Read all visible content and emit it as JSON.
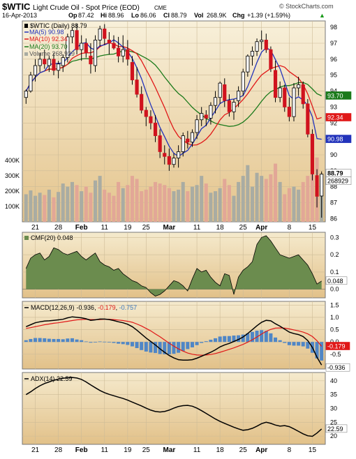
{
  "header": {
    "symbol": "$WTIC",
    "name": "Light Crude Oil - Spot Price (EOD)",
    "exchange": "CME",
    "credit": "© StockCharts.com",
    "date": "16-Apr-2013",
    "op_label": "Op",
    "op": "87.42",
    "hi_label": "Hi",
    "hi": "88.96",
    "lo_label": "Lo",
    "lo": "86.06",
    "cl_label": "Cl",
    "cl": "88.79",
    "vol_label": "Vol",
    "vol": "268.9K",
    "chg_label": "Chg",
    "chg": "+1.39 (+1.59%)",
    "chg_arrow": "▲"
  },
  "legend": {
    "main": "$WTIC (Daily) 88.79",
    "ma5": "MA(5) 90.98",
    "ma10": "MA(10) 92.34",
    "ma20": "MA(20) 93.70",
    "volume": "Volume 268,929"
  },
  "last_value_tags": {
    "ma20": "93.70",
    "ma10": "92.34",
    "ma5": "90.98",
    "price": "88.79",
    "volume": "268929"
  },
  "colors": {
    "panel_bg_top": "#f7eed6",
    "panel_bg_bottom": "#e6c78f",
    "up": "#f4f4f4",
    "down": "#d0121e",
    "ma5": "#2233bb",
    "ma10": "#e01818",
    "ma20": "#1b7a1b",
    "vol_up": "#a9aca3",
    "vol_down": "#e2a797",
    "cmf": "#6b8c4e",
    "macd_hist": "#4f86c6"
  },
  "chart_data": [
    {
      "type": "candlestick",
      "title": "$WTIC (Daily) 88.79",
      "ylim": [
        85.8,
        98.4
      ],
      "y_ticks": [
        86,
        87,
        88,
        89,
        90,
        91,
        92,
        93,
        94,
        95,
        96,
        97,
        98
      ],
      "x_ticks": [
        "21",
        "28",
        "Feb",
        "11",
        "19",
        "25",
        "Mar",
        "11",
        "18",
        "25",
        "Apr",
        "8",
        "15"
      ],
      "x_tick_bars": [
        2,
        7,
        12,
        17,
        22,
        26,
        31,
        37,
        42,
        47,
        51,
        57,
        62
      ],
      "volume_ticks": [
        "100K",
        "200K",
        "300K",
        "400K"
      ],
      "volume_tick_values": [
        100000,
        200000,
        300000,
        400000
      ],
      "volume_max": 560000,
      "ohlc": [
        [
          93.6,
          94.1,
          93.2,
          94.0
        ],
        [
          94.0,
          95.2,
          93.9,
          95.0
        ],
        [
          95.0,
          96.0,
          94.6,
          95.6
        ],
        [
          95.6,
          96.4,
          95.2,
          96.0
        ],
        [
          96.0,
          96.6,
          95.4,
          95.7
        ],
        [
          95.6,
          96.2,
          95.2,
          96.0
        ],
        [
          96.0,
          96.4,
          95.0,
          95.3
        ],
        [
          95.3,
          95.9,
          94.8,
          95.7
        ],
        [
          95.6,
          96.3,
          95.2,
          96.1
        ],
        [
          96.1,
          97.6,
          95.8,
          97.4
        ],
        [
          97.4,
          98.0,
          97.0,
          97.8
        ],
        [
          97.8,
          98.2,
          96.3,
          96.6
        ],
        [
          96.6,
          97.5,
          95.9,
          97.0
        ],
        [
          97.0,
          97.3,
          96.1,
          96.4
        ],
        [
          96.2,
          97.0,
          95.1,
          95.7
        ],
        [
          95.6,
          97.5,
          95.2,
          97.2
        ],
        [
          97.2,
          98.1,
          96.8,
          97.9
        ],
        [
          97.9,
          98.2,
          96.9,
          97.3
        ],
        [
          97.2,
          97.7,
          96.3,
          97.0
        ],
        [
          97.0,
          97.5,
          96.6,
          96.7
        ],
        [
          96.7,
          97.4,
          95.8,
          96.2
        ],
        [
          96.2,
          97.5,
          95.8,
          96.6
        ],
        [
          96.6,
          97.2,
          95.6,
          96.0
        ],
        [
          95.8,
          96.2,
          94.4,
          94.7
        ],
        [
          94.7,
          95.5,
          93.6,
          93.8
        ],
        [
          93.8,
          94.3,
          92.6,
          92.8
        ],
        [
          92.8,
          93.0,
          91.8,
          92.4
        ],
        [
          92.4,
          92.8,
          91.6,
          92.0
        ],
        [
          92.0,
          92.5,
          90.8,
          91.2
        ],
        [
          91.2,
          91.6,
          89.8,
          90.2
        ],
        [
          90.1,
          90.6,
          89.4,
          89.9
        ],
        [
          89.9,
          90.4,
          89.0,
          89.4
        ],
        [
          89.4,
          90.1,
          89.2,
          89.8
        ],
        [
          89.8,
          90.6,
          89.2,
          90.2
        ],
        [
          90.2,
          91.4,
          89.9,
          91.2
        ],
        [
          91.0,
          91.5,
          90.4,
          90.8
        ],
        [
          90.8,
          91.6,
          90.5,
          91.4
        ],
        [
          91.4,
          92.5,
          91.0,
          92.2
        ],
        [
          92.2,
          93.0,
          91.8,
          92.6
        ],
        [
          92.5,
          92.8,
          91.8,
          92.3
        ],
        [
          92.3,
          93.3,
          91.9,
          93.1
        ],
        [
          93.1,
          94.0,
          92.6,
          93.6
        ],
        [
          93.6,
          94.6,
          93.2,
          94.5
        ],
        [
          94.4,
          94.8,
          93.0,
          93.4
        ],
        [
          93.4,
          93.8,
          92.4,
          92.7
        ],
        [
          92.7,
          93.5,
          92.2,
          93.3
        ],
        [
          93.4,
          94.3,
          93.0,
          94.0
        ],
        [
          94.0,
          95.4,
          93.7,
          95.2
        ],
        [
          95.2,
          96.3,
          94.9,
          96.2
        ],
        [
          96.2,
          96.8,
          95.6,
          96.5
        ],
        [
          96.5,
          97.3,
          96.2,
          97.1
        ],
        [
          97.1,
          97.8,
          96.6,
          97.2
        ],
        [
          97.2,
          97.6,
          96.4,
          96.6
        ],
        [
          96.6,
          96.8,
          95.2,
          95.4
        ],
        [
          95.3,
          95.9,
          93.3,
          93.6
        ],
        [
          93.6,
          94.6,
          93.3,
          94.2
        ],
        [
          94.2,
          94.4,
          92.7,
          93.0
        ],
        [
          93.0,
          93.6,
          92.1,
          92.4
        ],
        [
          92.4,
          94.5,
          92.1,
          94.2
        ],
        [
          94.2,
          94.9,
          93.7,
          94.4
        ],
        [
          94.4,
          94.6,
          92.9,
          93.2
        ],
        [
          93.2,
          93.5,
          91.1,
          91.3
        ],
        [
          91.3,
          91.6,
          88.4,
          88.8
        ],
        [
          88.7,
          89.1,
          86.7,
          87.4
        ],
        [
          87.42,
          88.96,
          86.06,
          88.79
        ]
      ],
      "volume": [
        180000,
        205000,
        170000,
        190000,
        175000,
        210000,
        160000,
        195000,
        250000,
        230000,
        260000,
        240000,
        200000,
        230000,
        190000,
        270000,
        300000,
        210000,
        190000,
        170000,
        260000,
        220000,
        240000,
        300000,
        280000,
        200000,
        210000,
        230000,
        260000,
        250000,
        240000,
        220000,
        200000,
        210000,
        260000,
        200000,
        230000,
        240000,
        300000,
        250000,
        190000,
        200000,
        220000,
        280000,
        240000,
        170000,
        260000,
        300000,
        370000,
        230000,
        320000,
        300000,
        280000,
        310000,
        380000,
        260000,
        180000,
        220000,
        230000,
        210000,
        260000,
        300000,
        350000,
        420000,
        268929
      ],
      "series": [
        {
          "name": "MA(5) 90.98",
          "last": 90.98
        },
        {
          "name": "MA(10) 92.34",
          "last": 92.34
        },
        {
          "name": "MA(20) 93.70",
          "last": 93.7
        },
        {
          "name": "Volume 268,929",
          "last": 268929
        }
      ]
    },
    {
      "type": "area",
      "title": "CMF(20) 0.048",
      "ylim": [
        -0.05,
        0.33
      ],
      "y_ticks": [
        0.0,
        0.1,
        0.2,
        0.3
      ],
      "y_tick_labels": [
        "0.0",
        "0.1",
        "0.2",
        "0.3"
      ],
      "last_value": "0.048",
      "values": [
        0.12,
        0.18,
        0.2,
        0.21,
        0.17,
        0.19,
        0.24,
        0.23,
        0.21,
        0.2,
        0.21,
        0.22,
        0.19,
        0.17,
        0.19,
        0.21,
        0.16,
        0.14,
        0.13,
        0.11,
        0.12,
        0.09,
        0.07,
        0.05,
        0.04,
        0.02,
        0.01,
        -0.02,
        -0.04,
        -0.03,
        -0.01,
        0.02,
        0.05,
        0.04,
        0.02,
        -0.01,
        0.06,
        0.12,
        0.1,
        0.11,
        0.07,
        0.04,
        0.02,
        0.09,
        0.08,
        -0.03,
        0.07,
        0.11,
        0.13,
        0.16,
        0.26,
        0.3,
        0.31,
        0.28,
        0.24,
        0.2,
        0.19,
        0.18,
        0.19,
        0.2,
        0.17,
        0.14,
        0.09,
        0.03,
        0.048
      ]
    },
    {
      "type": "line",
      "title": "MACD(12,26,9)",
      "legend_parts": [
        "MACD(12,26,9)",
        "-0.936",
        "-0.179",
        "-0.757"
      ],
      "ylim": [
        -1.1,
        1.65
      ],
      "y_ticks": [
        1.5,
        1.0,
        0.5,
        0.0,
        -0.5
      ],
      "y_tick_labels": [
        "1.5",
        "1.0",
        "0.5",
        "0.0",
        "-0.5"
      ],
      "last_tags": [
        "-0.179",
        "-0.936"
      ],
      "macd": [
        0.62,
        0.7,
        0.78,
        0.82,
        0.85,
        0.86,
        0.88,
        0.9,
        0.92,
        0.98,
        1.02,
        1.0,
        0.98,
        0.94,
        0.88,
        0.9,
        0.93,
        0.93,
        0.91,
        0.87,
        0.82,
        0.78,
        0.72,
        0.62,
        0.48,
        0.32,
        0.16,
        0.02,
        -0.12,
        -0.28,
        -0.42,
        -0.55,
        -0.65,
        -0.72,
        -0.74,
        -0.74,
        -0.72,
        -0.66,
        -0.58,
        -0.5,
        -0.42,
        -0.32,
        -0.2,
        -0.12,
        -0.06,
        0.02,
        0.1,
        0.2,
        0.34,
        0.5,
        0.66,
        0.8,
        0.88,
        0.86,
        0.74,
        0.64,
        0.52,
        0.4,
        0.34,
        0.3,
        0.22,
        0.06,
        -0.22,
        -0.62,
        -0.936
      ],
      "signal": [
        0.55,
        0.58,
        0.62,
        0.66,
        0.7,
        0.73,
        0.76,
        0.78,
        0.81,
        0.84,
        0.87,
        0.9,
        0.91,
        0.92,
        0.91,
        0.91,
        0.91,
        0.92,
        0.92,
        0.91,
        0.89,
        0.87,
        0.84,
        0.8,
        0.73,
        0.65,
        0.55,
        0.45,
        0.33,
        0.21,
        0.08,
        -0.05,
        -0.17,
        -0.28,
        -0.37,
        -0.45,
        -0.5,
        -0.53,
        -0.54,
        -0.53,
        -0.51,
        -0.47,
        -0.42,
        -0.36,
        -0.3,
        -0.24,
        -0.17,
        -0.1,
        -0.01,
        0.09,
        0.2,
        0.32,
        0.43,
        0.51,
        0.56,
        0.57,
        0.56,
        0.53,
        0.49,
        0.45,
        0.4,
        0.33,
        0.22,
        0.05,
        -0.179
      ]
    },
    {
      "type": "line",
      "title": "ADX(14) 22.59",
      "ylim": [
        17,
        43
      ],
      "y_ticks": [
        20,
        25,
        30,
        35,
        40
      ],
      "y_tick_labels": [
        "20",
        "25",
        "30",
        "35",
        "40"
      ],
      "last_value": "22.59",
      "values": [
        35.0,
        36.0,
        37.2,
        38.2,
        39.0,
        39.6,
        40.2,
        40.6,
        40.9,
        41.1,
        41.2,
        41.0,
        40.5,
        39.6,
        38.5,
        37.5,
        36.5,
        35.7,
        35.1,
        34.6,
        34.1,
        33.6,
        33.0,
        32.3,
        31.6,
        30.9,
        30.1,
        29.4,
        28.9,
        28.7,
        28.9,
        29.4,
        30.1,
        30.7,
        31.0,
        31.1,
        30.8,
        30.1,
        29.2,
        28.2,
        27.2,
        26.2,
        25.3,
        24.6,
        23.9,
        23.2,
        22.6,
        22.1,
        22.3,
        22.8,
        23.6,
        24.5,
        25.0,
        24.6,
        24.0,
        23.6,
        23.8,
        23.4,
        22.6,
        21.7,
        20.8,
        20.1,
        19.9,
        21.1,
        22.59
      ]
    }
  ]
}
